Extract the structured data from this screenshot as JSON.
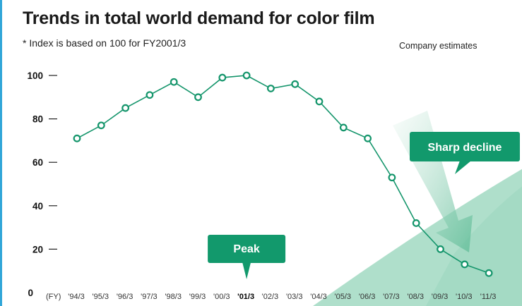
{
  "title": "Trends in total world demand for color film",
  "subtitle": "* Index is based on 100 for FY2001/3",
  "source_note": "Company estimates",
  "colors": {
    "line": "#14956b",
    "callout": "#12996c",
    "wedge": "#a6dcc5",
    "arrow": "#c8e8da",
    "frame": "#31a6d8"
  },
  "chart_data": {
    "type": "line",
    "title": "Trends in total world demand for color film",
    "subtitle": "* Index is based on 100 for FY2001/3",
    "x_prefix": "(FY)",
    "categories": [
      "'94/3",
      "'95/3",
      "'96/3",
      "'97/3",
      "'98/3",
      "'99/3",
      "'00/3",
      "'01/3",
      "'02/3",
      "'03/3",
      "'04/3",
      "'05/3",
      "'06/3",
      "'07/3",
      "'08/3",
      "'09/3",
      "'10/3",
      "'11/3"
    ],
    "highlight_category": "'01/3",
    "series": [
      {
        "values": [
          71,
          77,
          85,
          91,
          97,
          90,
          99,
          100,
          94,
          96,
          88,
          76,
          71,
          53,
          32,
          20,
          13,
          9
        ]
      }
    ],
    "yticks": [
      0,
      20,
      40,
      60,
      80,
      100
    ],
    "ylim": [
      0,
      100
    ],
    "grid": false,
    "annotations": [
      {
        "text": "Peak",
        "category": "'01/3"
      },
      {
        "text": "Sharp decline",
        "category": "'10/3"
      }
    ]
  }
}
